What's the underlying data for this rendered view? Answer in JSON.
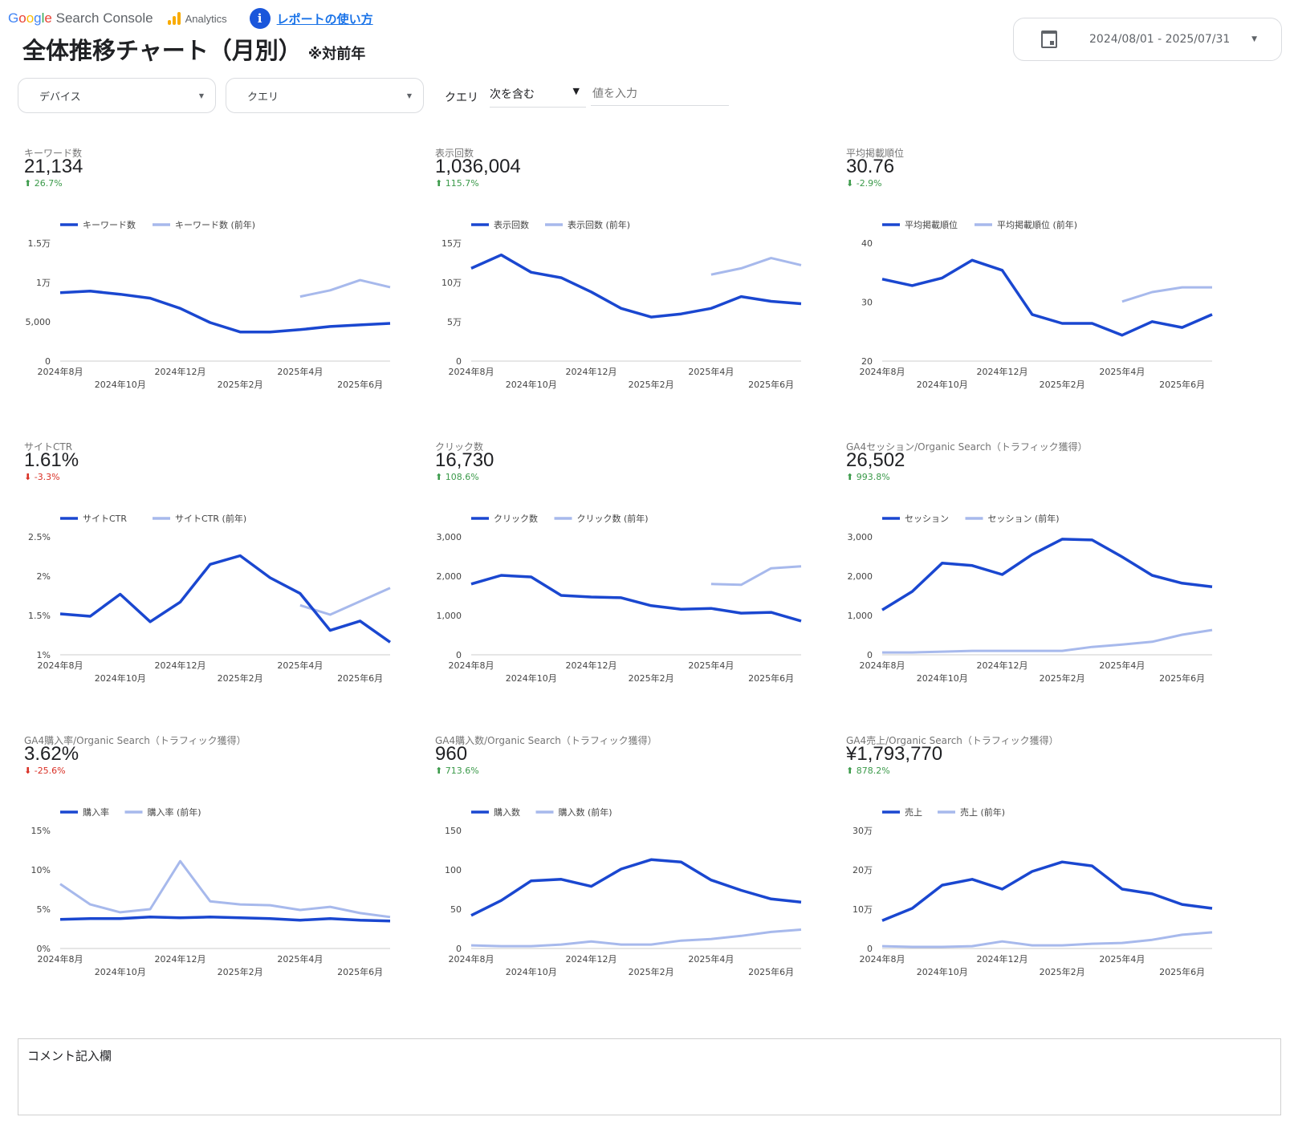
{
  "header": {
    "gsc_logo": {
      "google": "Google",
      "rest": "Search Console"
    },
    "ga_logo": "Analytics",
    "help_link": "レポートの使い方",
    "title": "全体推移チャート（月別）",
    "title_note": "※対前年",
    "date_range": "2024/08/01 - 2025/07/31"
  },
  "filters": {
    "device": "デバイス",
    "query": "クエリ",
    "query_filter_label": "クエリ",
    "query_operator": "次を含む",
    "query_value_placeholder": "値を入力"
  },
  "colors": {
    "current": "#1a47d0",
    "previous": "#a7b9ec",
    "up": "#3b9a4a",
    "down": "#d93025"
  },
  "months_bottom": [
    "2024年8月",
    "2024年12月",
    "2025年4月"
  ],
  "months_top": [
    "2024年10月",
    "2025年2月",
    "2025年6月"
  ],
  "panels": [
    {
      "label": "キーワード数",
      "value": "21,134",
      "delta": "26.7%",
      "dir": "up",
      "delta_color": "up"
    },
    {
      "label": "表示回数",
      "value": "1,036,004",
      "delta": "115.7%",
      "dir": "up",
      "delta_color": "up"
    },
    {
      "label": "平均掲載順位",
      "value": "30.76",
      "delta": "-2.9%",
      "dir": "down",
      "delta_color": "up"
    },
    {
      "label": "サイトCTR",
      "value": "1.61%",
      "delta": "-3.3%",
      "dir": "down",
      "delta_color": "down"
    },
    {
      "label": "クリック数",
      "value": "16,730",
      "delta": "108.6%",
      "dir": "up",
      "delta_color": "up"
    },
    {
      "label": "GA4セッション/Organic Search（トラフィック獲得）",
      "value": "26,502",
      "delta": "993.8%",
      "dir": "up",
      "delta_color": "up"
    },
    {
      "label": "GA4購入率/Organic Search（トラフィック獲得）",
      "value": "3.62%",
      "delta": "-25.6%",
      "dir": "down",
      "delta_color": "down"
    },
    {
      "label": "GA4購入数/Organic Search（トラフィック獲得）",
      "value": "960",
      "delta": "713.6%",
      "dir": "up",
      "delta_color": "up"
    },
    {
      "label": "GA4売上/Organic Search（トラフィック獲得）",
      "value": "¥1,793,770",
      "delta": "878.2%",
      "dir": "up",
      "delta_color": "up"
    }
  ],
  "chart_data": [
    {
      "type": "line",
      "x": [
        "2024年8月",
        "2024年9月",
        "2024年10月",
        "2024年11月",
        "2024年12月",
        "2025年1月",
        "2025年2月",
        "2025年3月",
        "2025年4月",
        "2025年5月",
        "2025年6月",
        "2025年7月"
      ],
      "ylim": [
        0,
        15000
      ],
      "ticks": [
        {
          "v": 0,
          "l": "0"
        },
        {
          "v": 5000,
          "l": "5,000"
        },
        {
          "v": 10000,
          "l": "1万"
        },
        {
          "v": 15000,
          "l": "1.5万"
        }
      ],
      "series": [
        {
          "name": "キーワード数",
          "values": [
            8700,
            8900,
            8500,
            8000,
            6700,
            4900,
            3700,
            3700,
            4000,
            4400,
            4600,
            4800
          ]
        },
        {
          "name": "キーワード数 (前年)",
          "values": [
            null,
            null,
            null,
            null,
            null,
            null,
            null,
            null,
            8200,
            9000,
            10300,
            9400
          ]
        }
      ]
    },
    {
      "type": "line",
      "ylim": [
        0,
        150000
      ],
      "ticks": [
        {
          "v": 0,
          "l": "0"
        },
        {
          "v": 50000,
          "l": "5万"
        },
        {
          "v": 100000,
          "l": "10万"
        },
        {
          "v": 150000,
          "l": "15万"
        }
      ],
      "series": [
        {
          "name": "表示回数",
          "values": [
            118000,
            135000,
            113000,
            106000,
            88000,
            67000,
            56000,
            60000,
            67000,
            82000,
            76000,
            73000
          ]
        },
        {
          "name": "表示回数 (前年)",
          "values": [
            null,
            null,
            null,
            null,
            null,
            null,
            null,
            null,
            110000,
            118000,
            131000,
            122000
          ]
        }
      ]
    },
    {
      "type": "line",
      "ylim": [
        20,
        40
      ],
      "ticks": [
        {
          "v": 20,
          "l": "20"
        },
        {
          "v": 30,
          "l": "30"
        },
        {
          "v": 40,
          "l": "40"
        }
      ],
      "series": [
        {
          "name": "平均掲載順位",
          "values": [
            33.9,
            32.8,
            34.1,
            37.1,
            35.4,
            27.9,
            26.4,
            26.4,
            24.4,
            26.7,
            25.7,
            27.9
          ]
        },
        {
          "name": "平均掲載順位 (前年)",
          "values": [
            null,
            null,
            null,
            null,
            null,
            null,
            null,
            null,
            30.1,
            31.7,
            32.5,
            32.5
          ]
        }
      ]
    },
    {
      "type": "line",
      "ylim": [
        1,
        2.5
      ],
      "ticks": [
        {
          "v": 1,
          "l": "1%"
        },
        {
          "v": 1.5,
          "l": "1.5%"
        },
        {
          "v": 2,
          "l": "2%"
        },
        {
          "v": 2.5,
          "l": "2.5%"
        }
      ],
      "series": [
        {
          "name": "サイトCTR",
          "values": [
            1.52,
            1.49,
            1.77,
            1.42,
            1.67,
            2.15,
            2.26,
            1.98,
            1.78,
            1.31,
            1.43,
            1.16
          ]
        },
        {
          "name": "サイトCTR (前年)",
          "values": [
            null,
            null,
            null,
            null,
            null,
            null,
            null,
            null,
            1.63,
            1.51,
            1.68,
            1.85
          ]
        }
      ]
    },
    {
      "type": "line",
      "ylim": [
        0,
        3000
      ],
      "ticks": [
        {
          "v": 0,
          "l": "0"
        },
        {
          "v": 1000,
          "l": "1,000"
        },
        {
          "v": 2000,
          "l": "2,000"
        },
        {
          "v": 3000,
          "l": "3,000"
        }
      ],
      "series": [
        {
          "name": "クリック数",
          "values": [
            1800,
            2020,
            1980,
            1510,
            1470,
            1450,
            1250,
            1160,
            1180,
            1060,
            1080,
            860
          ]
        },
        {
          "name": "クリック数 (前年)",
          "values": [
            null,
            null,
            null,
            null,
            null,
            null,
            null,
            null,
            1800,
            1780,
            2200,
            2250
          ]
        }
      ]
    },
    {
      "type": "line",
      "ylim": [
        0,
        3000
      ],
      "ticks": [
        {
          "v": 0,
          "l": "0"
        },
        {
          "v": 1000,
          "l": "1,000"
        },
        {
          "v": 2000,
          "l": "2,000"
        },
        {
          "v": 3000,
          "l": "3,000"
        }
      ],
      "series": [
        {
          "name": "セッション",
          "values": [
            1140,
            1610,
            2330,
            2270,
            2040,
            2550,
            2940,
            2920,
            2490,
            2020,
            1820,
            1730
          ]
        },
        {
          "name": "セッション (前年)",
          "values": [
            60,
            60,
            80,
            100,
            100,
            100,
            100,
            200,
            260,
            330,
            510,
            630
          ]
        }
      ]
    },
    {
      "type": "line",
      "ylim": [
        0,
        15
      ],
      "ticks": [
        {
          "v": 0,
          "l": "0%"
        },
        {
          "v": 5,
          "l": "5%"
        },
        {
          "v": 10,
          "l": "10%"
        },
        {
          "v": 15,
          "l": "15%"
        }
      ],
      "series": [
        {
          "name": "購入率",
          "values": [
            3.7,
            3.8,
            3.8,
            4.0,
            3.9,
            4.0,
            3.9,
            3.8,
            3.6,
            3.8,
            3.6,
            3.5
          ]
        },
        {
          "name": "購入率 (前年)",
          "values": [
            8.2,
            5.6,
            4.6,
            5.0,
            11.1,
            6.0,
            5.6,
            5.5,
            4.9,
            5.3,
            4.5,
            4.0
          ]
        }
      ]
    },
    {
      "type": "line",
      "ylim": [
        0,
        150
      ],
      "ticks": [
        {
          "v": 0,
          "l": "0"
        },
        {
          "v": 50,
          "l": "50"
        },
        {
          "v": 100,
          "l": "100"
        },
        {
          "v": 150,
          "l": "150"
        }
      ],
      "series": [
        {
          "name": "購入数",
          "values": [
            42,
            61,
            86,
            88,
            79,
            101,
            113,
            110,
            87,
            74,
            63,
            59
          ]
        },
        {
          "name": "購入数 (前年)",
          "values": [
            4,
            3,
            3,
            5,
            9,
            5,
            5,
            10,
            12,
            16,
            21,
            24
          ]
        }
      ]
    },
    {
      "type": "line",
      "ylim": [
        0,
        300000
      ],
      "ticks": [
        {
          "v": 0,
          "l": "0"
        },
        {
          "v": 100000,
          "l": "10万"
        },
        {
          "v": 200000,
          "l": "20万"
        },
        {
          "v": 300000,
          "l": "30万"
        }
      ],
      "series": [
        {
          "name": "売上",
          "values": [
            71000,
            102000,
            161000,
            176000,
            151000,
            196000,
            220000,
            210000,
            151000,
            139000,
            112000,
            102000
          ]
        },
        {
          "name": "売上 (前年)",
          "values": [
            6000,
            4000,
            4000,
            6000,
            18000,
            8000,
            8000,
            12000,
            14000,
            22000,
            35000,
            41000
          ]
        }
      ]
    }
  ],
  "comment": {
    "label": "コメント記入欄"
  }
}
